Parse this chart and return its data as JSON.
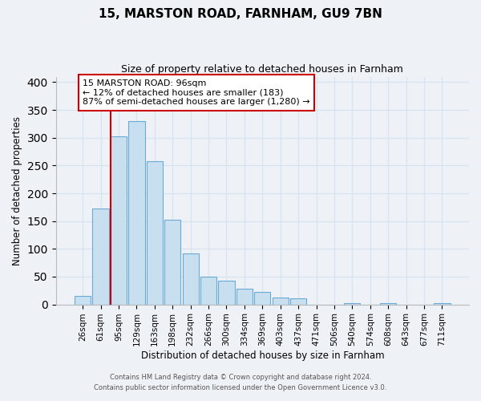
{
  "title": "15, MARSTON ROAD, FARNHAM, GU9 7BN",
  "subtitle": "Size of property relative to detached houses in Farnham",
  "xlabel": "Distribution of detached houses by size in Farnham",
  "ylabel": "Number of detached properties",
  "bar_labels": [
    "26sqm",
    "61sqm",
    "95sqm",
    "129sqm",
    "163sqm",
    "198sqm",
    "232sqm",
    "266sqm",
    "300sqm",
    "334sqm",
    "369sqm",
    "403sqm",
    "437sqm",
    "471sqm",
    "506sqm",
    "540sqm",
    "574sqm",
    "608sqm",
    "643sqm",
    "677sqm",
    "711sqm"
  ],
  "bar_values": [
    15,
    172,
    302,
    330,
    258,
    153,
    92,
    50,
    43,
    29,
    23,
    13,
    11,
    0,
    0,
    3,
    0,
    2,
    0,
    0,
    2
  ],
  "bar_color": "#c8dff0",
  "bar_edge_color": "#6aaad4",
  "vline_color": "#cc0000",
  "ylim": [
    0,
    410
  ],
  "yticks": [
    0,
    50,
    100,
    150,
    200,
    250,
    300,
    350,
    400
  ],
  "annotation_title": "15 MARSTON ROAD: 96sqm",
  "annotation_line2": "← 12% of detached houses are smaller (183)",
  "annotation_line3": "87% of semi-detached houses are larger (1,280) →",
  "annotation_box_edge": "#cc0000",
  "footer_line1": "Contains HM Land Registry data © Crown copyright and database right 2024.",
  "footer_line2": "Contains public sector information licensed under the Open Government Licence v3.0.",
  "background_color": "#eef2f7",
  "grid_color": "#d8e4f0",
  "plot_bg_color": "#eef2f7"
}
